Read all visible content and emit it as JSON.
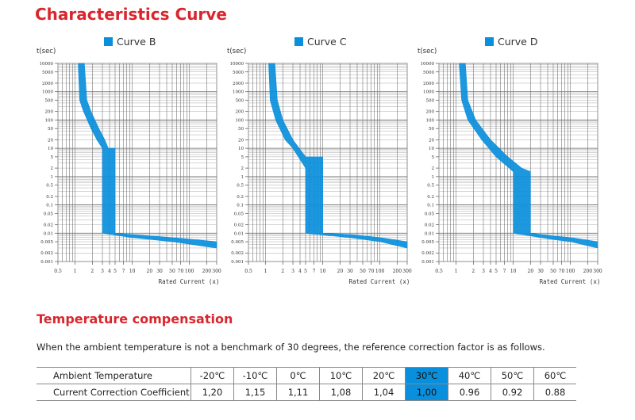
{
  "heading": "Characteristics Curve",
  "section_heading": "Temperature compensation",
  "note": "When the ambient temperature is not a benchmark of 30 degrees, the reference correction factor is as follows.",
  "colors": {
    "heading": "#d9262e",
    "curve": "#0a8fdc",
    "highlight": "#0a8fdc"
  },
  "chart_data": [
    {
      "type": "line",
      "legend": "Curve B",
      "ylabel": "t(sec)",
      "xlabel": "Rated Current (x)",
      "x_scale": "log",
      "y_scale": "log",
      "xlim": [
        0.5,
        300
      ],
      "ylim": [
        0.001,
        10000
      ],
      "x_ticks": [
        "0.5",
        "1",
        "2",
        "3",
        "4",
        "5",
        "7",
        "10",
        "20",
        "30",
        "50",
        "70",
        "100",
        "200",
        "300"
      ],
      "y_ticks": [
        "10000",
        "5000",
        "2000",
        "1000",
        "500",
        "200",
        "100",
        "50",
        "20",
        "10",
        "5",
        "2",
        "1",
        "0.5",
        "0.2",
        "0.1",
        "0.05",
        "0.02",
        "0.01",
        "0.005",
        "0.002",
        "0.001"
      ],
      "grid": true,
      "band_upper": [
        [
          1.45,
          10000
        ],
        [
          1.6,
          500
        ],
        [
          1.9,
          200
        ],
        [
          2.6,
          50
        ],
        [
          3.3,
          20
        ],
        [
          3.8,
          10
        ],
        [
          5,
          10
        ],
        [
          5,
          0.01
        ],
        [
          10,
          0.009
        ],
        [
          50,
          0.007
        ],
        [
          300,
          0.005
        ]
      ],
      "band_lower": [
        [
          1.13,
          10000
        ],
        [
          1.2,
          500
        ],
        [
          1.4,
          200
        ],
        [
          1.9,
          50
        ],
        [
          2.4,
          20
        ],
        [
          3,
          10
        ],
        [
          3,
          0.01
        ],
        [
          10,
          0.007
        ],
        [
          50,
          0.005
        ],
        [
          300,
          0.003
        ]
      ]
    },
    {
      "type": "line",
      "legend": "Curve C",
      "ylabel": "t(sec)",
      "xlabel": "Rated Current (x)",
      "x_scale": "log",
      "y_scale": "log",
      "xlim": [
        0.5,
        300
      ],
      "ylim": [
        0.001,
        10000
      ],
      "x_ticks": [
        "0.5",
        "1",
        "2",
        "3",
        "4",
        "5",
        "7",
        "10",
        "20",
        "30",
        "50",
        "70",
        "100",
        "200",
        "300"
      ],
      "y_ticks": [
        "10000",
        "5000",
        "2000",
        "1000",
        "500",
        "200",
        "100",
        "50",
        "20",
        "10",
        "5",
        "2",
        "1",
        "0.5",
        "0.2",
        "0.1",
        "0.05",
        "0.02",
        "0.01",
        "0.005",
        "0.002",
        "0.001"
      ],
      "grid": true,
      "band_upper": [
        [
          1.45,
          10000
        ],
        [
          1.6,
          500
        ],
        [
          2,
          100
        ],
        [
          3,
          20
        ],
        [
          5,
          5
        ],
        [
          10,
          5
        ],
        [
          10,
          0.01
        ],
        [
          30,
          0.009
        ],
        [
          100,
          0.007
        ],
        [
          300,
          0.005
        ]
      ],
      "band_lower": [
        [
          1.13,
          10000
        ],
        [
          1.2,
          500
        ],
        [
          1.5,
          100
        ],
        [
          2.2,
          20
        ],
        [
          3,
          10
        ],
        [
          5,
          2
        ],
        [
          5,
          0.01
        ],
        [
          30,
          0.007
        ],
        [
          100,
          0.005
        ],
        [
          300,
          0.003
        ]
      ]
    },
    {
      "type": "line",
      "legend": "Curve D",
      "ylabel": "t(sec)",
      "xlabel": "Rated Current (x)",
      "x_scale": "log",
      "y_scale": "log",
      "xlim": [
        0.5,
        300
      ],
      "ylim": [
        0.001,
        10000
      ],
      "x_ticks": [
        "0.5",
        "1",
        "2",
        "3",
        "4",
        "5",
        "7",
        "10",
        "20",
        "30",
        "50",
        "70",
        "100",
        "200",
        "300"
      ],
      "y_ticks": [
        "10000",
        "5000",
        "2000",
        "1000",
        "500",
        "200",
        "100",
        "50",
        "20",
        "10",
        "5",
        "2",
        "1",
        "0.5",
        "0.2",
        "0.1",
        "0.05",
        "0.02",
        "0.01",
        "0.005",
        "0.002",
        "0.001"
      ],
      "grid": true,
      "band_upper": [
        [
          1.45,
          10000
        ],
        [
          1.6,
          500
        ],
        [
          2.2,
          100
        ],
        [
          4,
          20
        ],
        [
          8,
          5
        ],
        [
          14,
          2
        ],
        [
          20,
          1.5
        ],
        [
          20,
          0.01
        ],
        [
          50,
          0.008
        ],
        [
          100,
          0.007
        ],
        [
          300,
          0.005
        ]
      ],
      "band_lower": [
        [
          1.13,
          10000
        ],
        [
          1.25,
          500
        ],
        [
          1.6,
          100
        ],
        [
          2.8,
          20
        ],
        [
          5,
          5
        ],
        [
          10,
          1.5
        ],
        [
          10,
          0.01
        ],
        [
          50,
          0.006
        ],
        [
          100,
          0.005
        ],
        [
          300,
          0.003
        ]
      ]
    }
  ],
  "table": {
    "row1_label": "Ambient Temperature",
    "row2_label": "Current Correction Coefficient",
    "temperatures": [
      "-20℃",
      "-10℃",
      "0℃",
      "10℃",
      "20℃",
      "30℃",
      "40℃",
      "50℃",
      "60℃"
    ],
    "coefficients": [
      "1,20",
      "1,15",
      "1,11",
      "1,08",
      "1,04",
      "1,00",
      "0.96",
      "0.92",
      "0.88"
    ],
    "highlight_index": 5
  }
}
